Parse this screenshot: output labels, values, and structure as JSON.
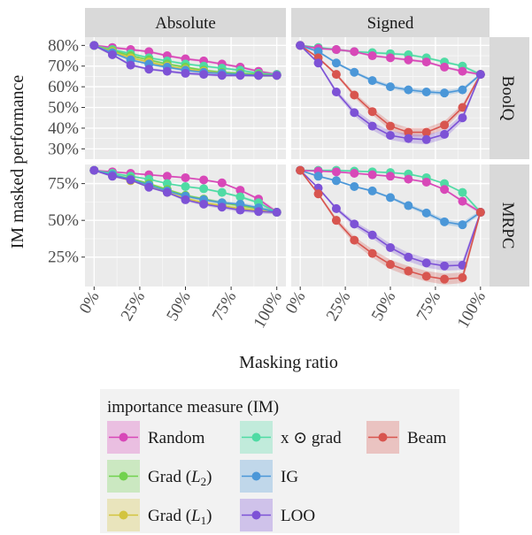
{
  "chart_data": {
    "type": "line",
    "xlabel": "Masking ratio",
    "ylabel": "IM masked performance",
    "columns": [
      "Absolute",
      "Signed"
    ],
    "rows": [
      "BoolQ",
      "MRPC"
    ],
    "x": [
      0,
      10,
      20,
      30,
      40,
      50,
      60,
      70,
      80,
      90,
      100
    ],
    "x_ticks": [
      0,
      25,
      50,
      75,
      100
    ],
    "x_tick_labels": [
      "0%",
      "25%",
      "50%",
      "75%",
      "100%"
    ],
    "panels": [
      {
        "row": "BoolQ",
        "col": "Absolute",
        "ylim": [
          25,
          84
        ],
        "y_ticks": [
          30,
          40,
          50,
          60,
          70,
          80
        ],
        "y_tick_labels": [
          "30%",
          "40%",
          "50%",
          "60%",
          "70%",
          "80%"
        ],
        "series": [
          {
            "name": "Random",
            "values": [
              80,
              79,
              78,
              77,
              75,
              73.5,
              72.5,
              71,
              69.5,
              67.5,
              66
            ]
          },
          {
            "name": "x ⊙ grad",
            "values": [
              80,
              78,
              76,
              74,
              72.5,
              71,
              70,
              69,
              68,
              66.5,
              66
            ]
          },
          {
            "name": "Grad (L2)",
            "values": [
              80,
              77.5,
              75,
              73,
              71,
              69.5,
              68,
              67,
              66.5,
              66,
              65.5
            ]
          },
          {
            "name": "Grad (L1)",
            "values": [
              80,
              77,
              74,
              72,
              70,
              68.5,
              67.5,
              66.5,
              66,
              65.5,
              65.5
            ]
          },
          {
            "name": "IG",
            "values": [
              80,
              76.5,
              73,
              71,
              69.5,
              68,
              67,
              66.5,
              66,
              65.5,
              65.5
            ]
          },
          {
            "name": "LOO",
            "values": [
              80,
              75.5,
              70.5,
              68.5,
              67.5,
              66.5,
              66,
              65.5,
              65.5,
              65.5,
              65.5
            ]
          }
        ]
      },
      {
        "row": "BoolQ",
        "col": "Signed",
        "ylim": [
          25,
          84
        ],
        "y_ticks": [
          30,
          40,
          50,
          60,
          70,
          80
        ],
        "series": [
          {
            "name": "x ⊙ grad",
            "values": [
              80,
              79,
              78,
              77,
              76.5,
              76,
              75.5,
              74,
              72,
              70,
              66
            ]
          },
          {
            "name": "Random",
            "values": [
              80,
              78.5,
              78,
              77,
              75,
              74,
              73,
              72,
              69.5,
              67.5,
              66
            ]
          },
          {
            "name": "IG",
            "values": [
              80,
              77,
              71.5,
              67,
              63,
              60,
              58.5,
              57.5,
              57,
              58.5,
              66
            ]
          },
          {
            "name": "Beam",
            "values": [
              80,
              74,
              66,
              56,
              48,
              41,
              38,
              38,
              41.5,
              50,
              66
            ]
          },
          {
            "name": "LOO",
            "values": [
              80,
              71.5,
              57.5,
              47.5,
              41,
              36.5,
              35,
              34.5,
              37,
              45,
              66
            ]
          }
        ]
      },
      {
        "row": "MRPC",
        "col": "Absolute",
        "ylim": [
          5,
          88
        ],
        "y_ticks": [
          25,
          50,
          75
        ],
        "y_tick_labels": [
          "25%",
          "50%",
          "75%"
        ],
        "series": [
          {
            "name": "Random",
            "values": [
              84,
              83,
              82,
              81,
              80,
              79,
              77.5,
              75.5,
              70.5,
              64.5,
              55.5
            ]
          },
          {
            "name": "x ⊙ grad",
            "values": [
              84,
              82,
              80,
              78,
              75,
              73,
              71.5,
              69,
              66,
              62,
              55.5
            ]
          },
          {
            "name": "Grad (L2)",
            "values": [
              84,
              81,
              78.5,
              75,
              71,
              67,
              64.5,
              62,
              60,
              58,
              55.5
            ]
          },
          {
            "name": "Grad (L1)",
            "values": [
              84,
              80.5,
              77,
              73,
              69,
              65,
              62,
              60,
              58,
              57,
              55.5
            ]
          },
          {
            "name": "IG",
            "values": [
              84,
              81,
              78,
              74,
              70,
              66.5,
              64,
              62,
              61,
              58.5,
              55.5
            ]
          },
          {
            "name": "LOO",
            "values": [
              84,
              80,
              77.5,
              72.5,
              69,
              64,
              61,
              59,
              57,
              56,
              55.5
            ]
          }
        ]
      },
      {
        "row": "MRPC",
        "col": "Signed",
        "ylim": [
          5,
          88
        ],
        "y_ticks": [
          25,
          50,
          75
        ],
        "series": [
          {
            "name": "x ⊙ grad",
            "values": [
              84,
              84,
              84,
              83.5,
              83,
              82.5,
              81.5,
              79,
              75,
              69,
              55.5
            ]
          },
          {
            "name": "Random",
            "values": [
              84,
              83.5,
              83,
              82,
              81,
              80,
              78,
              76,
              71,
              63,
              55.5
            ]
          },
          {
            "name": "IG",
            "values": [
              84,
              80,
              77,
              73,
              70,
              65.5,
              60,
              55,
              49,
              47,
              55.5
            ]
          },
          {
            "name": "LOO",
            "values": [
              84,
              72,
              58,
              47.5,
              40,
              31.5,
              25,
              21,
              19,
              19.5,
              55.5
            ]
          },
          {
            "name": "Beam",
            "values": [
              84,
              68,
              50,
              36.5,
              27.5,
              20,
              15.5,
              12,
              10,
              11,
              55.5
            ]
          }
        ]
      }
    ],
    "legend": {
      "title": "importance measure (IM)",
      "placement": "bottom",
      "entries": [
        "Random",
        "Grad (L2)",
        "Grad (L1)",
        "x ⊙ grad",
        "IG",
        "LOO",
        "Beam"
      ]
    },
    "colors": {
      "Random": "#d848b8",
      "Grad (L2)": "#72d24e",
      "Grad (L1)": "#d3c43f",
      "x ⊙ grad": "#4fdba4",
      "IG": "#4b97d8",
      "LOO": "#7d52d6",
      "Beam": "#d8554f"
    },
    "grid": true
  }
}
